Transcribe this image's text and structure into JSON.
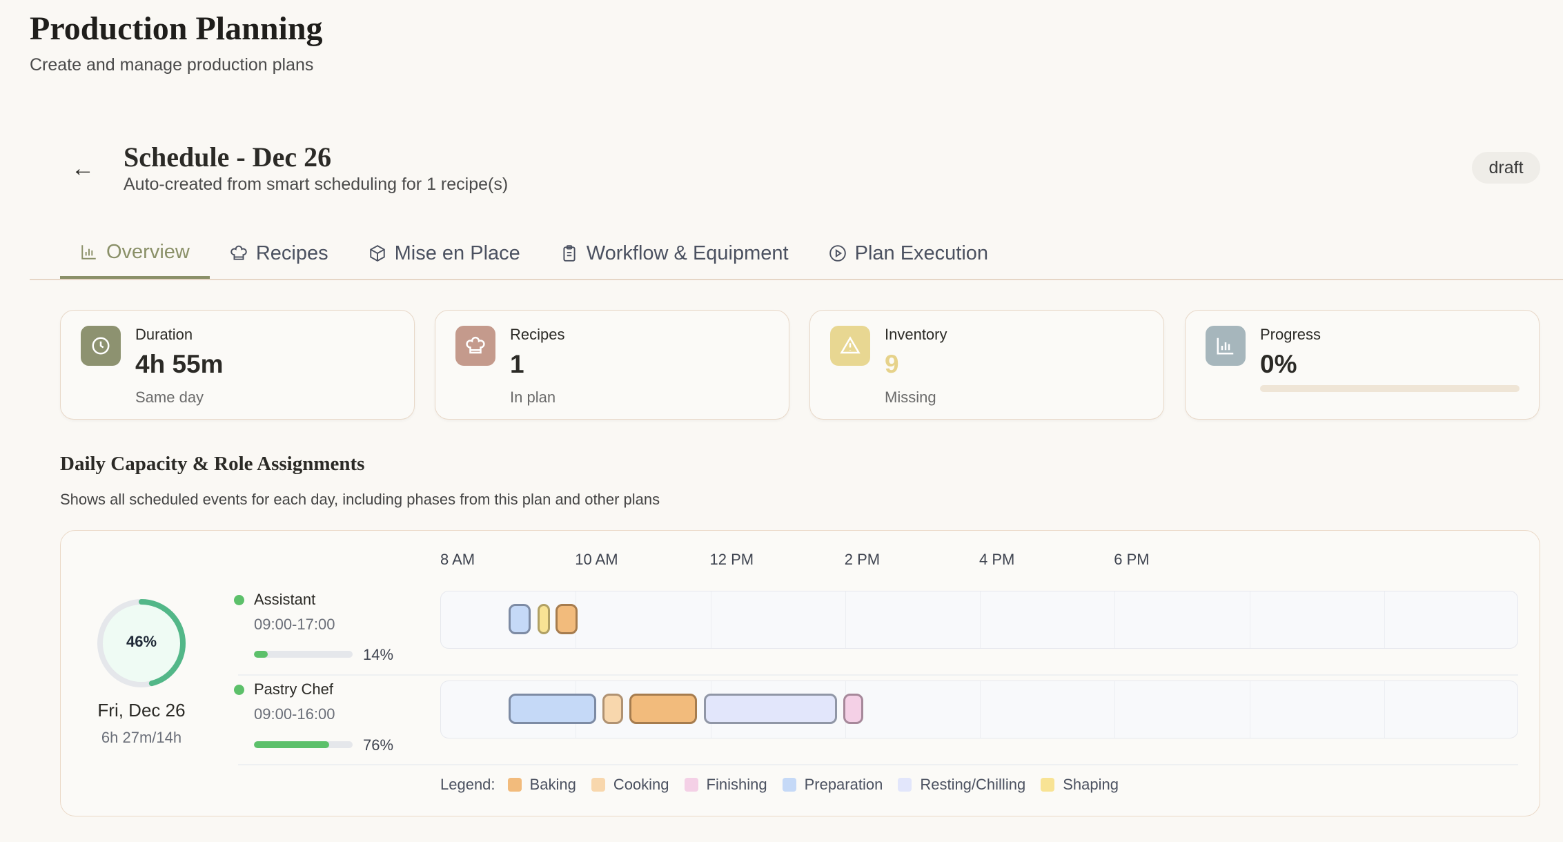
{
  "header": {
    "title": "Production Planning",
    "subtitle": "Create and manage production plans"
  },
  "plan": {
    "title": "Schedule - Dec 26",
    "subtitle": "Auto-created from smart scheduling for 1 recipe(s)",
    "status": "draft"
  },
  "tabs": [
    {
      "label": "Overview",
      "icon": "bar-chart-icon",
      "active": true
    },
    {
      "label": "Recipes",
      "icon": "chef-hat-icon"
    },
    {
      "label": "Mise en Place",
      "icon": "package-icon"
    },
    {
      "label": "Workflow & Equipment",
      "icon": "clipboard-icon"
    },
    {
      "label": "Plan Execution",
      "icon": "play-circle-icon"
    }
  ],
  "stats": [
    {
      "label": "Duration",
      "value": "4h 55m",
      "sub": "Same day",
      "icon": "clock-icon",
      "color": "#8d9270"
    },
    {
      "label": "Recipes",
      "value": "1",
      "sub": "In plan",
      "icon": "chef-hat-icon",
      "color": "#c49a8c"
    },
    {
      "label": "Inventory",
      "value": "9",
      "sub": "Missing",
      "icon": "warning-icon",
      "color": "#e8d792",
      "value_color": "#e6d28a"
    },
    {
      "label": "Progress",
      "value": "0%",
      "icon": "bar-chart-icon",
      "color": "#a6b6bc",
      "progress": 0
    }
  ],
  "capacity": {
    "title": "Daily Capacity & Role Assignments",
    "description": "Shows all scheduled events for each day, including phases from this plan and other plans",
    "day": {
      "label": "Fri, Dec 26",
      "usage": "6h 27m/14h",
      "percent_label": "46%",
      "percent": 46
    },
    "hours": [
      "8 AM",
      "10 AM",
      "12 PM",
      "2 PM",
      "4 PM",
      "6 PM"
    ],
    "timeline_start_hour": 8,
    "timeline_end_hour": 24,
    "roles": [
      {
        "name": "Assistant",
        "time": "09:00-17:00",
        "util_label": "14%",
        "util": 14,
        "events": [
          {
            "phase": "Preparation",
            "start": 9.0,
            "end": 9.33
          },
          {
            "phase": "Shaping",
            "start": 9.43,
            "end": 9.62
          },
          {
            "phase": "Baking",
            "start": 9.7,
            "end": 10.03
          }
        ]
      },
      {
        "name": "Pastry Chef",
        "time": "09:00-16:00",
        "util_label": "76%",
        "util": 76,
        "events": [
          {
            "phase": "Preparation",
            "start": 9.0,
            "end": 10.3
          },
          {
            "phase": "Cooking",
            "start": 10.4,
            "end": 10.7
          },
          {
            "phase": "Baking",
            "start": 10.8,
            "end": 11.8
          },
          {
            "phase": "Resting/Chilling",
            "start": 11.9,
            "end": 13.88
          },
          {
            "phase": "Finishing",
            "start": 13.97,
            "end": 14.27
          }
        ]
      }
    ],
    "legend_label": "Legend:",
    "phases": {
      "Baking": {
        "fill": "#f2bb7c",
        "border": "#a67c4e"
      },
      "Cooking": {
        "fill": "#f8d7ad",
        "border": "#b09272"
      },
      "Finishing": {
        "fill": "#f4d0e6",
        "border": "#a6889a"
      },
      "Preparation": {
        "fill": "#c5d9f7",
        "border": "#7d8ba4"
      },
      "Resting/Chilling": {
        "fill": "#e2e6fb",
        "border": "#9096a6"
      },
      "Shaping": {
        "fill": "#f8e394",
        "border": "#b0a064"
      }
    },
    "legend": [
      "Baking",
      "Cooking",
      "Finishing",
      "Preparation",
      "Resting/Chilling",
      "Shaping"
    ]
  }
}
